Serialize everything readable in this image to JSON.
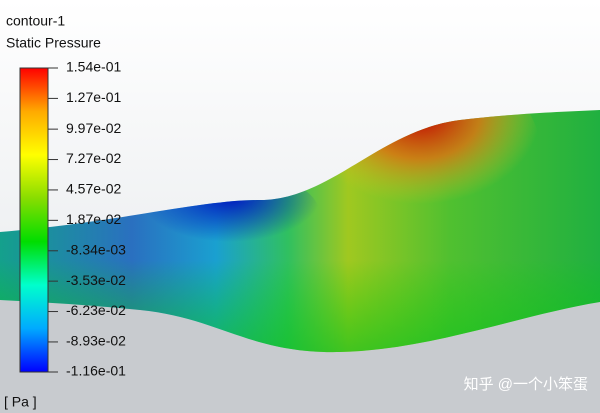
{
  "chart_data": {
    "type": "contour",
    "title": "contour-1",
    "subtitle": "Static Pressure",
    "colorbar_label": "[ Pa ]",
    "clim": [
      -0.116,
      0.154
    ],
    "cticks": [
      {
        "value": 0.154,
        "label": "1.54e-01"
      },
      {
        "value": 0.127,
        "label": "1.27e-01"
      },
      {
        "value": 0.0997,
        "label": "9.97e-02"
      },
      {
        "value": 0.0727,
        "label": "7.27e-02"
      },
      {
        "value": 0.0457,
        "label": "4.57e-02"
      },
      {
        "value": 0.0187,
        "label": "1.87e-02"
      },
      {
        "value": -0.00834,
        "label": "-8.34e-03"
      },
      {
        "value": -0.0353,
        "label": "-3.53e-02"
      },
      {
        "value": -0.0623,
        "label": "-6.23e-02"
      },
      {
        "value": -0.0893,
        "label": "-8.93e-02"
      },
      {
        "value": -0.116,
        "label": "-1.16e-01"
      }
    ],
    "colormap": [
      "#0000ff",
      "#00aaff",
      "#00ffcc",
      "#00dd00",
      "#88dd00",
      "#ffff00",
      "#ffaa00",
      "#ff0000"
    ],
    "watermark": "知乎 @一个小笨蛋"
  }
}
